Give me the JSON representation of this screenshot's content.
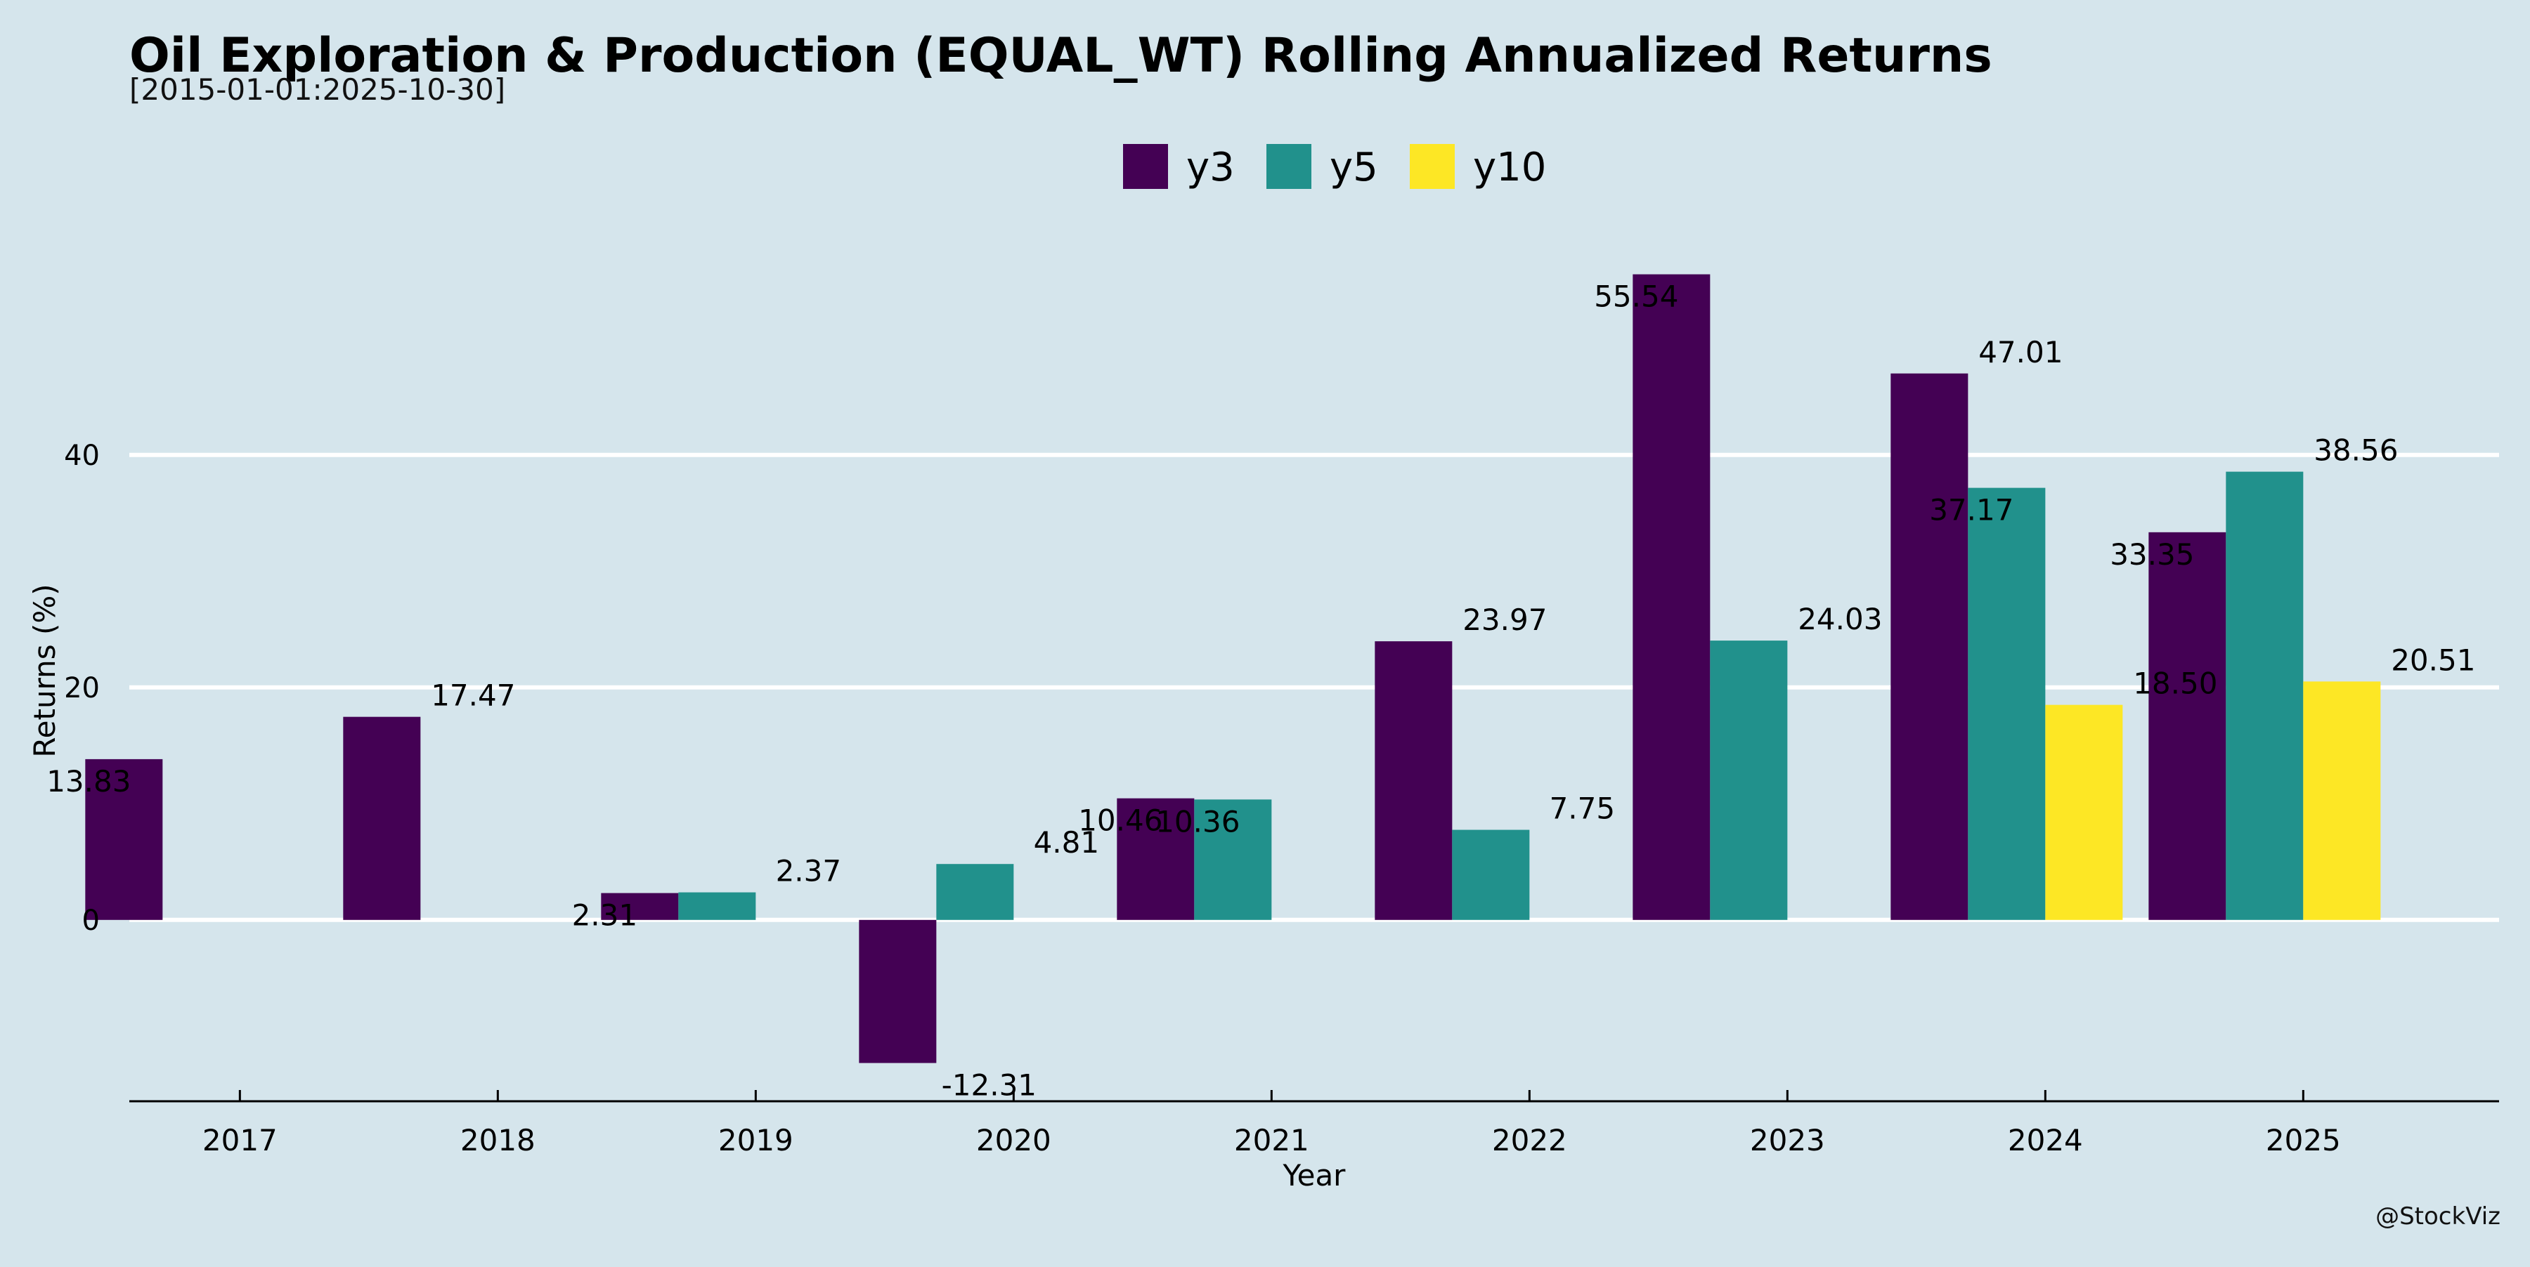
{
  "title": "Oil Exploration & Production (EQUAL_WT) Rolling Annualized Returns",
  "subtitle": "[2015-01-01:2025-10-30]",
  "watermark": "@StockViz",
  "chart_data": {
    "type": "bar",
    "categories": [
      "2017",
      "2018",
      "2019",
      "2020",
      "2021",
      "2022",
      "2023",
      "2024",
      "2025"
    ],
    "series": [
      {
        "name": "y3",
        "color": "#440154",
        "values": [
          13.83,
          17.47,
          2.31,
          -12.31,
          10.46,
          23.97,
          55.54,
          47.01,
          33.35
        ],
        "labels": [
          "13.83",
          "17.47",
          "2.31",
          "-12.31",
          "10.46",
          "23.97",
          "55.54",
          "47.01",
          "33.35"
        ]
      },
      {
        "name": "y5",
        "color": "#21918c",
        "values": [
          null,
          null,
          2.37,
          4.81,
          10.36,
          7.75,
          24.03,
          37.17,
          38.56
        ],
        "labels": [
          "",
          "",
          "2.37",
          "4.81",
          "10.36",
          "7.75",
          "24.03",
          "37.17",
          "38.56"
        ]
      },
      {
        "name": "y10",
        "color": "#fde725",
        "values": [
          null,
          null,
          null,
          null,
          null,
          null,
          null,
          18.5,
          20.51
        ],
        "labels": [
          "",
          "",
          "",
          "",
          "",
          "",
          "",
          "18.50",
          "20.51"
        ]
      }
    ],
    "xlabel": "Year",
    "ylabel": "Returns (%)",
    "yticks": [
      "0",
      "20",
      "40"
    ],
    "ylim": [
      -15.6,
      59.2
    ],
    "grid": "horizontal",
    "legend": "top-center"
  }
}
